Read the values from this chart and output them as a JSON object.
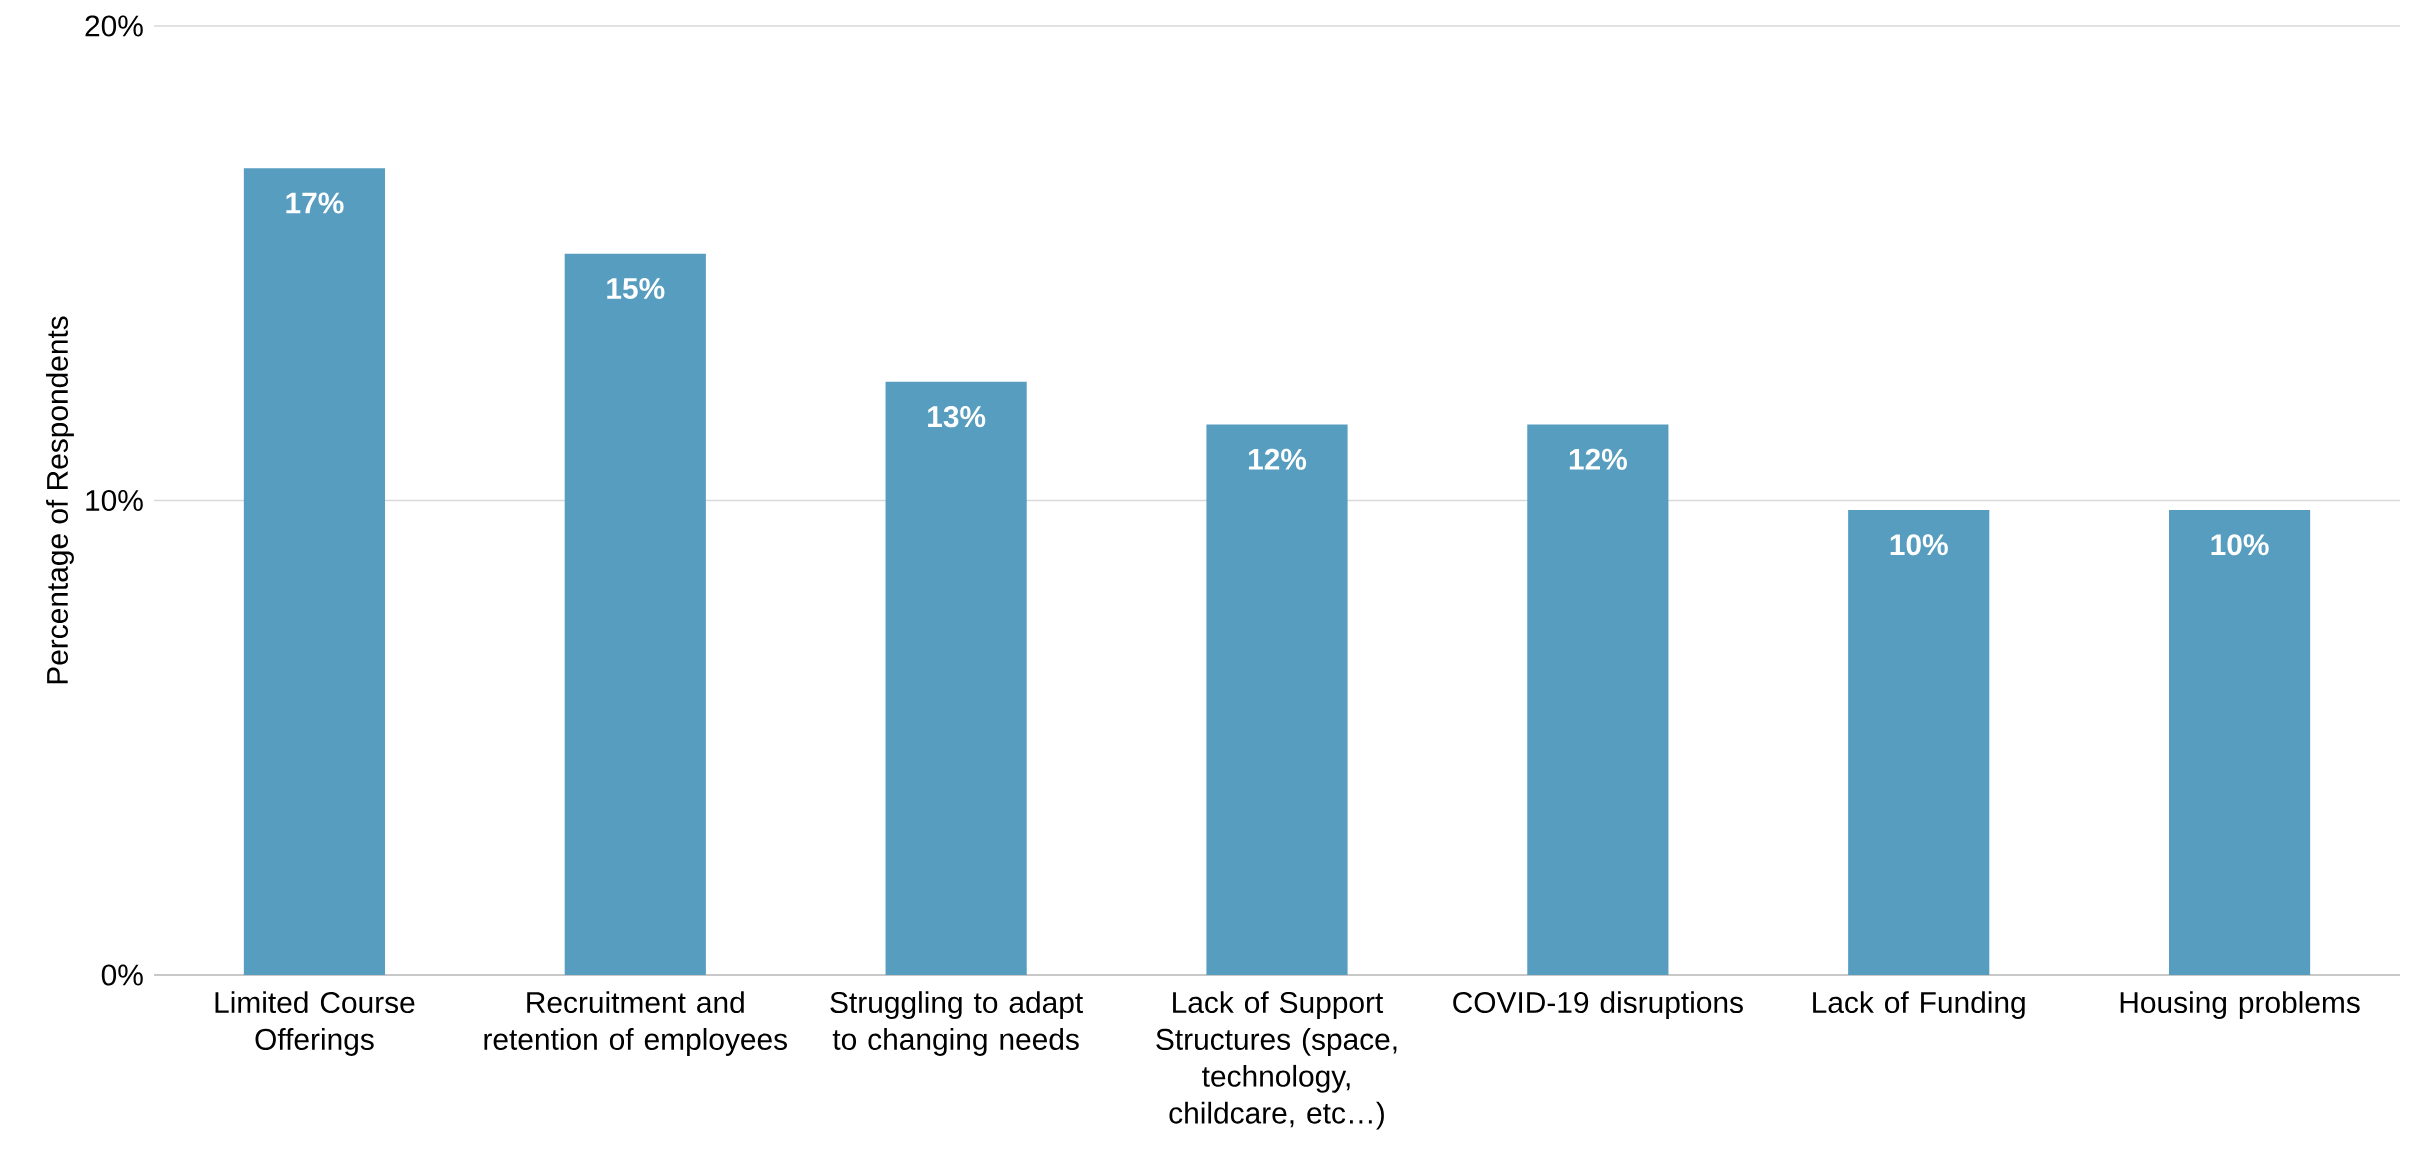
{
  "chart_data": {
    "type": "bar",
    "categories": [
      "Limited Course Offerings",
      "Recruitment and retention of employees",
      "Struggling to adapt to changing needs",
      "Lack of Support Structures (space, technology, childcare, etc…)",
      "COVID-19 disruptions",
      "Lack of Funding",
      "Housing problems"
    ],
    "values": [
      17,
      15.2,
      12.5,
      11.6,
      11.6,
      9.8,
      9.8
    ],
    "value_labels": [
      "17%",
      "15%",
      "13%",
      "12%",
      "12%",
      "10%",
      "10%"
    ],
    "color": "#579dbf",
    "ylabel": "Percentage of Respondents",
    "ylim": [
      0,
      20
    ],
    "yticks": [
      {
        "value": 0,
        "label": "0%"
      },
      {
        "value": 10,
        "label": "10%"
      },
      {
        "value": 20,
        "label": "20%"
      }
    ],
    "grid": "y"
  }
}
